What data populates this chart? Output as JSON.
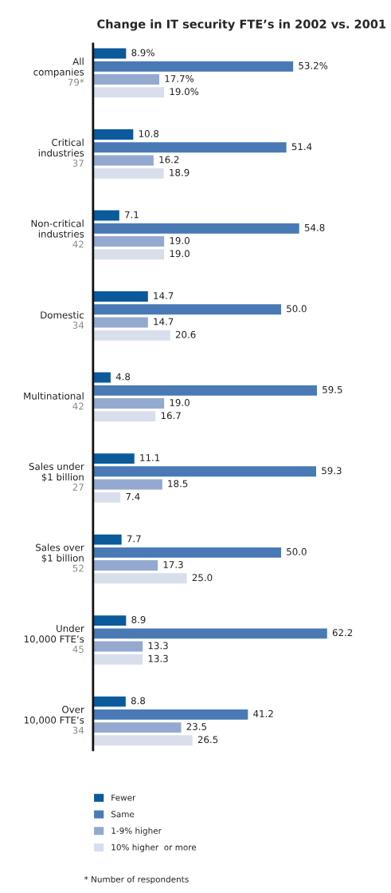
{
  "chart_data": {
    "type": "bar",
    "orientation": "horizontal",
    "title": "Change in IT security FTE’s in 2002 vs. 2001",
    "categories": [
      "All\ncompanies\n79*",
      "Critical\nindustries\n37",
      "Non-critical\nindustries\n42",
      "Domestic\n34",
      "Multinational\n42",
      "Sales under\n$1 billion\n27",
      "Sales over\n$1 billion\n52",
      "Under\n10,000 FTE’s\n45",
      "Over\n10,000 FTE’s\n34"
    ],
    "series": [
      {
        "name": "Fewer",
        "color": "#0a5a9c",
        "values": [
          8.9,
          10.8,
          7.1,
          14.7,
          4.8,
          11.1,
          7.7,
          8.9,
          8.8
        ],
        "value_labels": [
          "8.9%",
          "10.8",
          "7.1",
          "14.7",
          "4.8",
          "11.1",
          "7.7",
          "8.9",
          "8.8"
        ]
      },
      {
        "name": "Same",
        "color": "#4a7ab5",
        "values": [
          53.2,
          51.4,
          54.8,
          50.0,
          59.5,
          59.3,
          50.0,
          62.2,
          41.2
        ],
        "value_labels": [
          "53.2%",
          "51.4",
          "54.8",
          "50.0",
          "59.5",
          "59.3",
          "50.0",
          "62.2",
          "41.2"
        ]
      },
      {
        "name": "1-9% higher",
        "color": "#94a9d0",
        "values": [
          17.7,
          16.2,
          19.0,
          14.7,
          19.0,
          18.5,
          17.3,
          13.3,
          23.5
        ],
        "value_labels": [
          "17.7%",
          "16.2",
          "19.0",
          "14.7",
          "19.0",
          "18.5",
          "17.3",
          "13.3",
          "23.5"
        ]
      },
      {
        "name": "10% higher  or more",
        "color": "#d9deec",
        "values": [
          19.0,
          18.9,
          19.0,
          20.6,
          16.7,
          7.4,
          25.0,
          13.3,
          26.5
        ],
        "value_labels": [
          "19.0%",
          "18.9",
          "19.0",
          "20.6",
          "16.7",
          "7.4",
          "25.0",
          "13.3",
          "26.5"
        ]
      }
    ],
    "legend": "bottom",
    "annotations": [
      "* Number of respondents"
    ]
  }
}
